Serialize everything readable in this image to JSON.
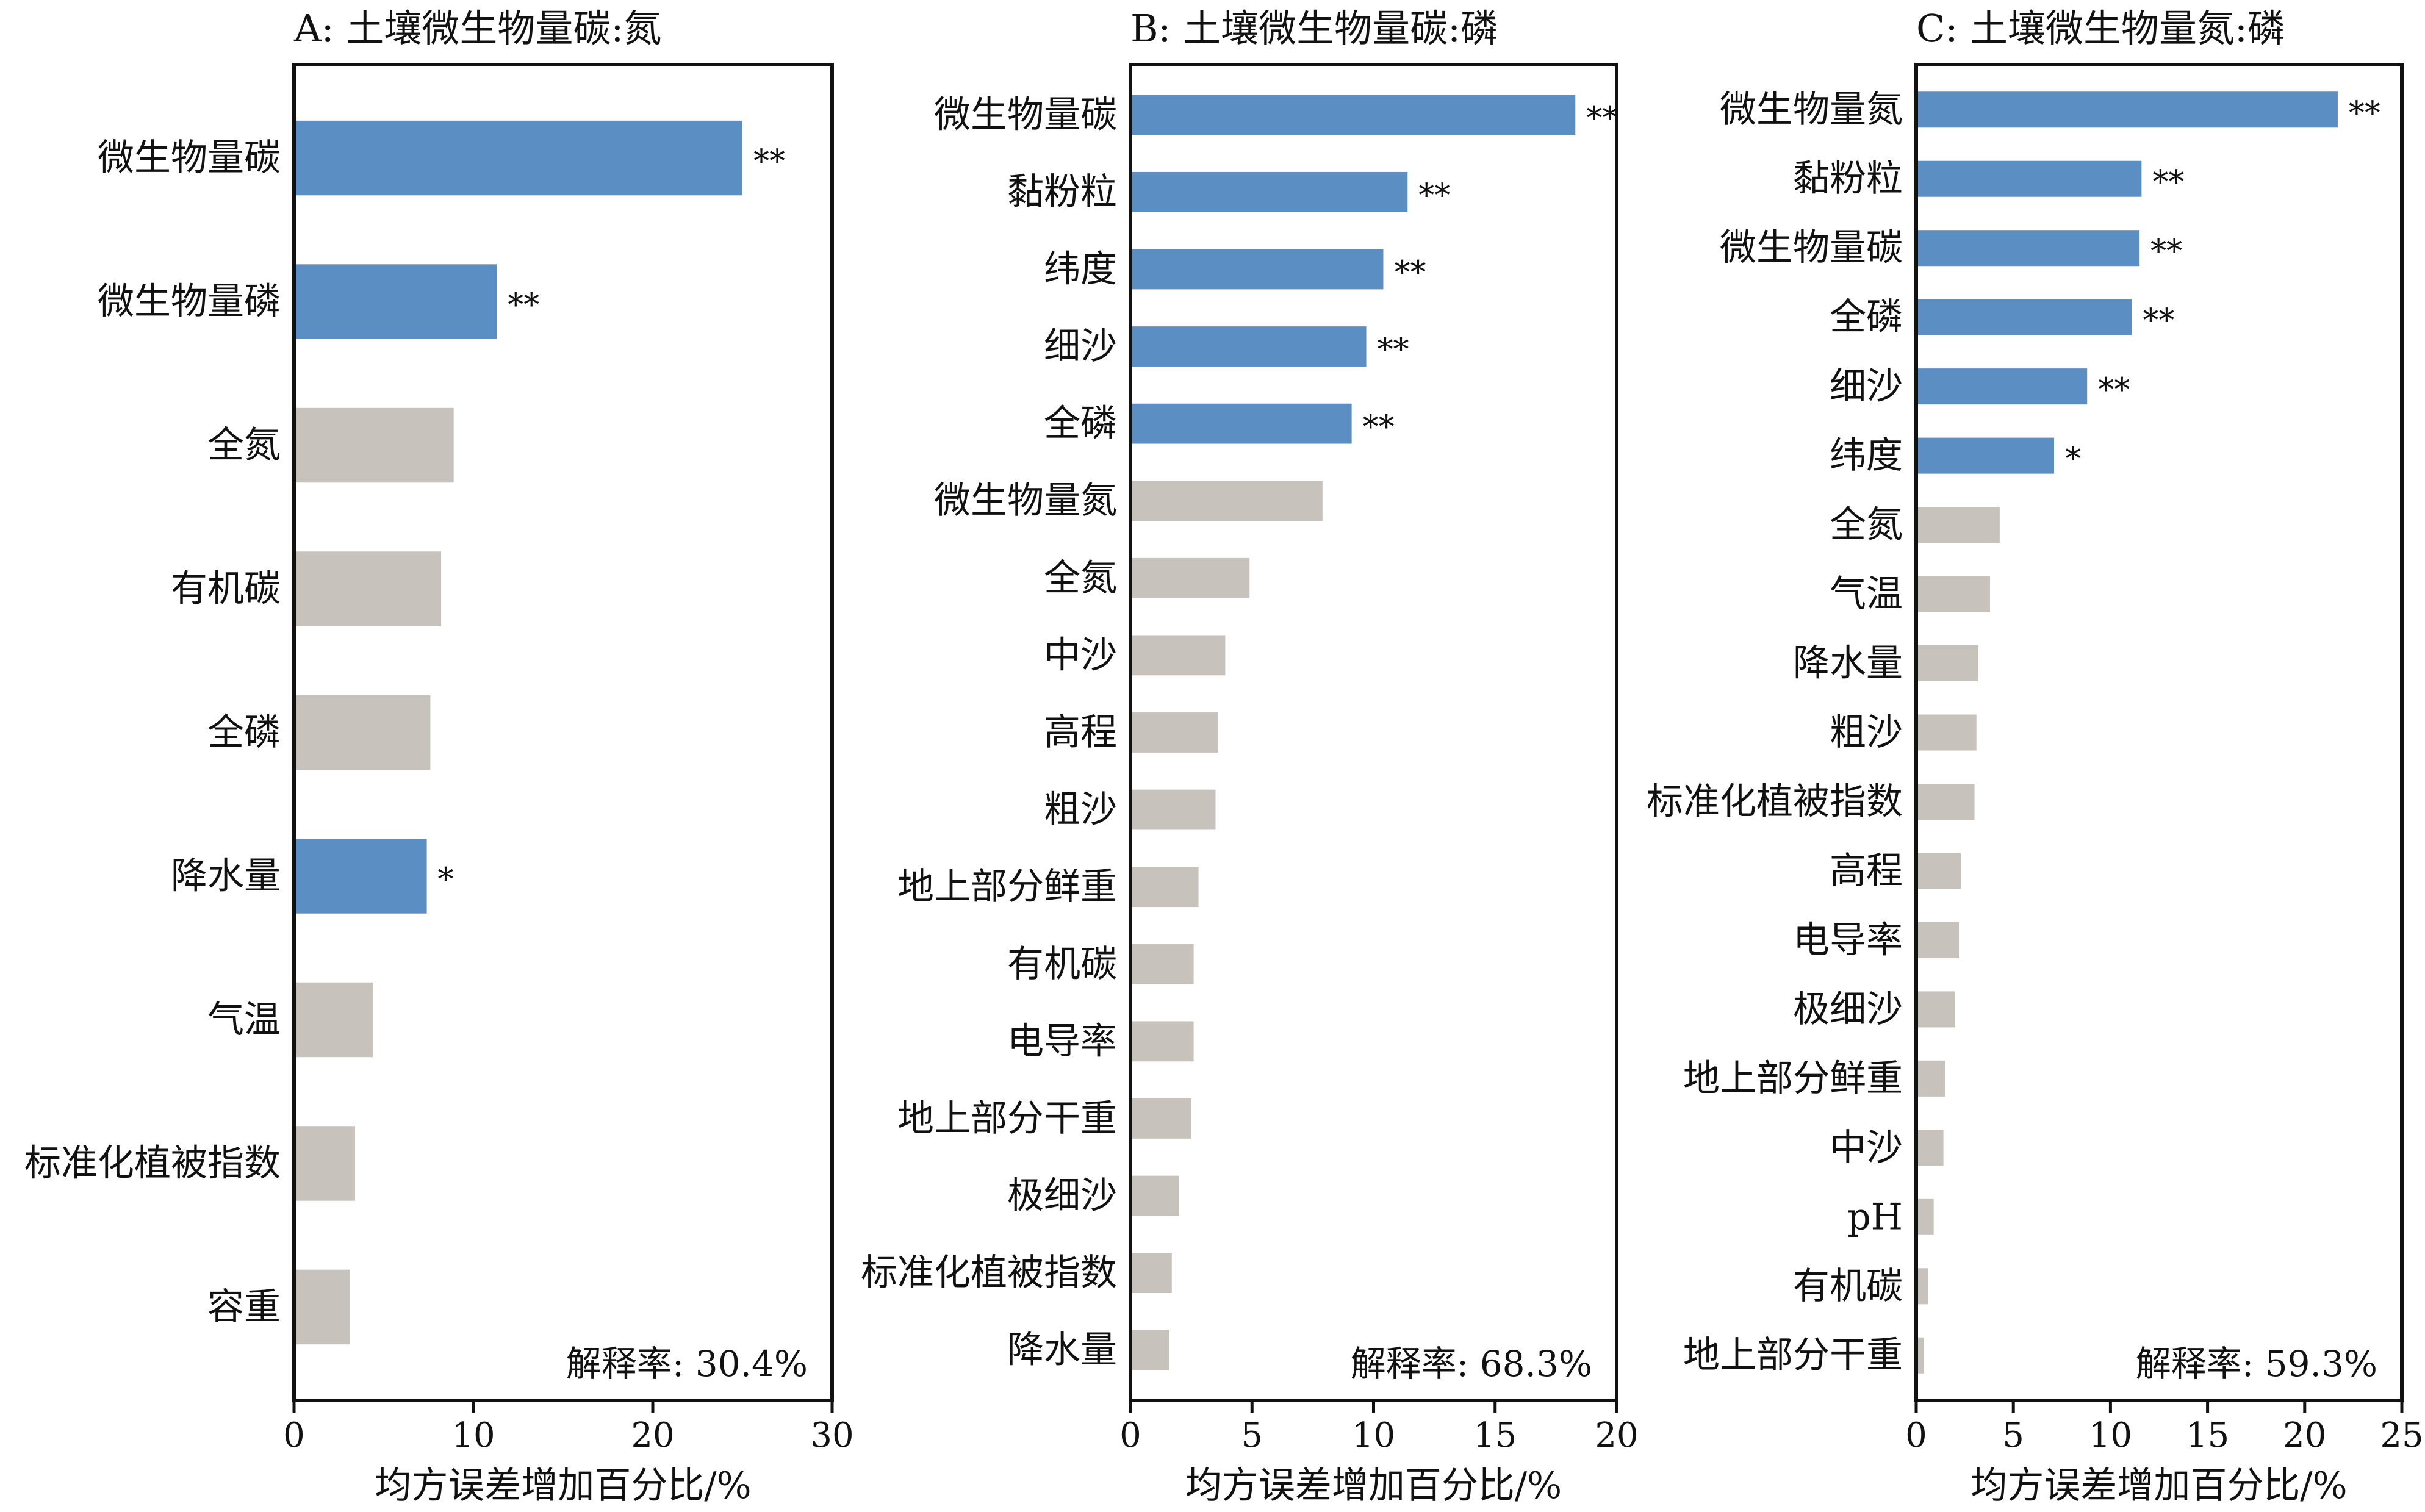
{
  "colors": {
    "significant": "#5b8fc3",
    "nonsignificant": "#c7c2bc",
    "axis": "#111111"
  },
  "chart_data": [
    {
      "type": "bar",
      "orientation": "horizontal",
      "title": "A: 土壤微生物量碳:氮",
      "xlabel": "均方误差增加百分比/%",
      "xlim": [
        0,
        30
      ],
      "xticks": [
        0,
        10,
        20,
        30
      ],
      "annotation": "解释率: 30.4%",
      "categories": [
        "微生物量碳",
        "微生物量磷",
        "全氮",
        "有机碳",
        "全磷",
        "降水量",
        "气温",
        "标准化植被指数",
        "容重"
      ],
      "values": [
        25.0,
        11.3,
        8.9,
        8.2,
        7.6,
        7.4,
        4.4,
        3.4,
        3.1
      ],
      "significance": [
        "**",
        "**",
        "",
        "",
        "",
        "*",
        "",
        "",
        ""
      ]
    },
    {
      "type": "bar",
      "orientation": "horizontal",
      "title": "B: 土壤微生物量碳:磷",
      "xlabel": "均方误差增加百分比/%",
      "xlim": [
        0,
        20
      ],
      "xticks": [
        0,
        5,
        10,
        15,
        20
      ],
      "annotation": "解释率: 68.3%",
      "categories": [
        "微生物量碳",
        "黏粉粒",
        "纬度",
        "细沙",
        "全磷",
        "微生物量氮",
        "全氮",
        "中沙",
        "高程",
        "粗沙",
        "地上部分鲜重",
        "有机碳",
        "电导率",
        "地上部分干重",
        "极细沙",
        "标准化植被指数",
        "降水量"
      ],
      "values": [
        18.3,
        11.4,
        10.4,
        9.7,
        9.1,
        7.9,
        4.9,
        3.9,
        3.6,
        3.5,
        2.8,
        2.6,
        2.6,
        2.5,
        2.0,
        1.7,
        1.6
      ],
      "significance": [
        "**",
        "**",
        "**",
        "**",
        "**",
        "",
        "",
        "",
        "",
        "",
        "",
        "",
        "",
        "",
        "",
        "",
        ""
      ]
    },
    {
      "type": "bar",
      "orientation": "horizontal",
      "title": "C: 土壤微生物量氮:磷",
      "xlabel": "均方误差增加百分比/%",
      "xlim": [
        0,
        25
      ],
      "xticks": [
        0,
        5,
        10,
        15,
        20,
        25
      ],
      "annotation": "解释率: 59.3%",
      "categories": [
        "微生物量氮",
        "黏粉粒",
        "微生物量碳",
        "全磷",
        "细沙",
        "纬度",
        "全氮",
        "气温",
        "降水量",
        "粗沙",
        "标准化植被指数",
        "高程",
        "电导率",
        "极细沙",
        "地上部分鲜重",
        "中沙",
        "pH",
        "有机碳",
        "地上部分干重"
      ],
      "values": [
        21.7,
        11.6,
        11.5,
        11.1,
        8.8,
        7.1,
        4.3,
        3.8,
        3.2,
        3.1,
        3.0,
        2.3,
        2.2,
        2.0,
        1.5,
        1.4,
        0.9,
        0.6,
        0.4
      ],
      "significance": [
        "**",
        "**",
        "**",
        "**",
        "**",
        "*",
        "",
        "",
        "",
        "",
        "",
        "",
        "",
        "",
        "",
        "",
        "",
        "",
        ""
      ]
    }
  ]
}
